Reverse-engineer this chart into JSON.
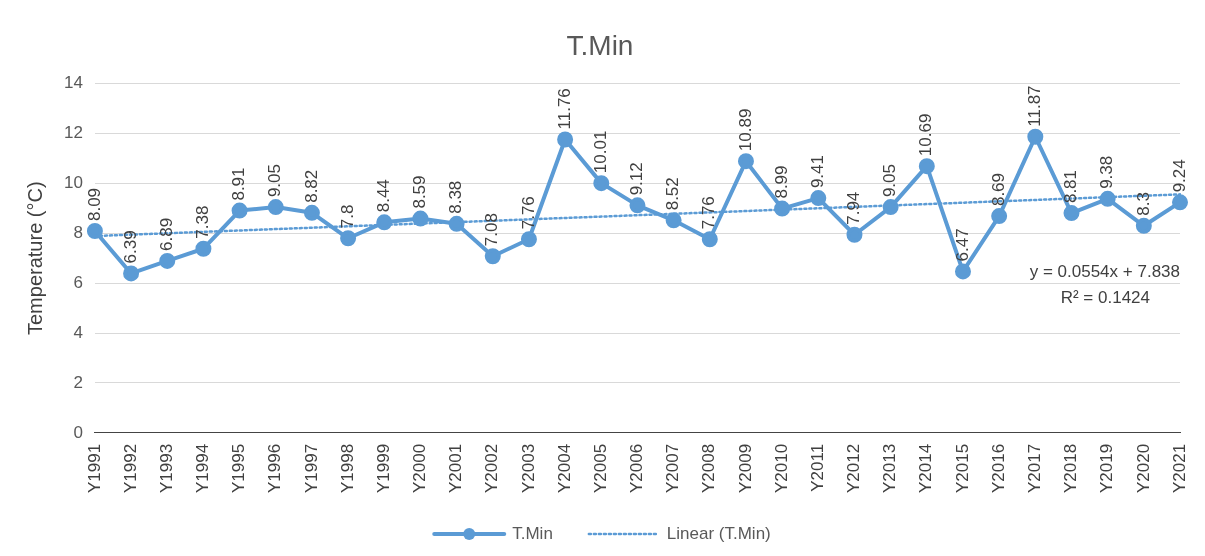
{
  "chart_data": {
    "type": "line",
    "title": "T.Min",
    "ylabel": "Temperature (°C)",
    "categories": [
      "Y1991",
      "Y1992",
      "Y1993",
      "Y1994",
      "Y1995",
      "Y1996",
      "Y1997",
      "Y1998",
      "Y1999",
      "Y2000",
      "Y2001",
      "Y2002",
      "Y2003",
      "Y2004",
      "Y2005",
      "Y2006",
      "Y2007",
      "Y2008",
      "Y2009",
      "Y2010",
      "Y2011",
      "Y2012",
      "Y2013",
      "Y2014",
      "Y2015",
      "Y2016",
      "Y2017",
      "Y2018",
      "Y2019",
      "Y2020",
      "Y2021"
    ],
    "series": [
      {
        "name": "T.Min",
        "color": "#5b9bd5",
        "marker": "circle",
        "line_style": "solid",
        "values": [
          8.09,
          6.39,
          6.89,
          7.38,
          8.91,
          9.05,
          8.82,
          7.8,
          8.44,
          8.59,
          8.38,
          7.08,
          7.76,
          11.76,
          10.01,
          9.12,
          8.52,
          7.76,
          10.89,
          8.99,
          9.41,
          7.94,
          9.05,
          10.69,
          6.47,
          8.69,
          11.87,
          8.81,
          9.38,
          8.3,
          9.24
        ],
        "value_labels": [
          "8.09",
          "6.39",
          "6.89",
          "7.38",
          "8.91",
          "9.05",
          "8.82",
          "7.8",
          "8.44",
          "8.59",
          "8.38",
          "7.08",
          "7.76",
          "11.76",
          "10.01",
          "9.12",
          "8.52",
          "7.76",
          "10.89",
          "8.99",
          "9.41",
          "7.94",
          "9.05",
          "10.69",
          "6.47",
          "8.69",
          "11.87",
          "8.81",
          "9.38",
          "8.3",
          "9.24"
        ]
      },
      {
        "name": "Linear (T.Min)",
        "type": "line",
        "color": "#5b9bd5",
        "marker": "none",
        "line_style": "dotted",
        "x": [
          "Y1991",
          "Y2021"
        ],
        "values": [
          7.89,
          9.56
        ]
      }
    ],
    "ylim": [
      0,
      14
    ],
    "yticks": [
      0,
      2,
      4,
      6,
      8,
      10,
      12,
      14
    ],
    "grid": "y",
    "legend": "bottom",
    "annotations": [
      "y = 0.0554x + 7.838",
      "R² = 0.1424"
    ]
  }
}
